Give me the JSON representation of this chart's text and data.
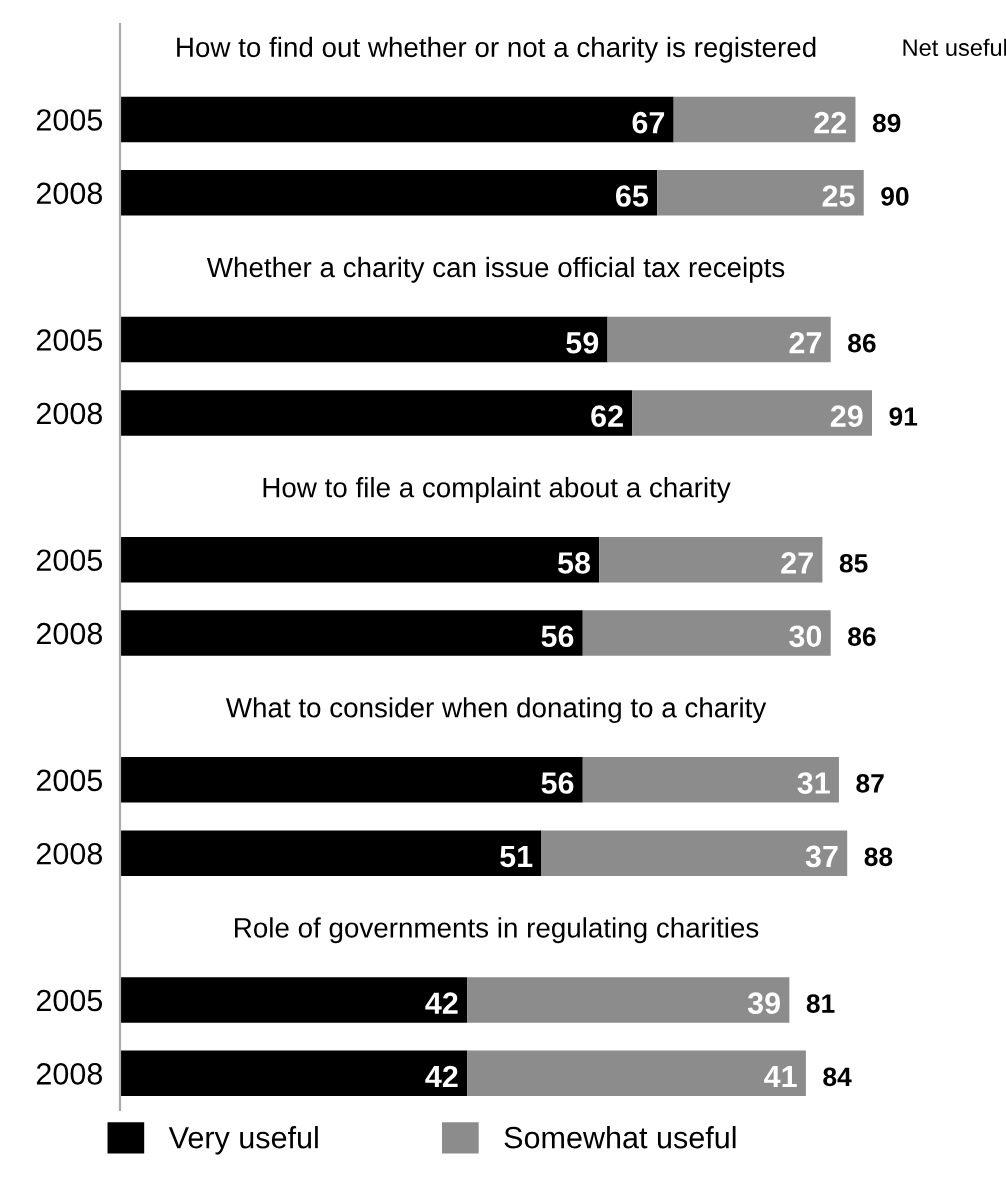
{
  "chart_data": {
    "type": "bar",
    "orientation": "horizontal",
    "stacked": true,
    "data_labels": true,
    "grid": false,
    "legend": "bottom",
    "categories": [
      "2005",
      "2008",
      "2005",
      "2008",
      "2005",
      "2008",
      "2005",
      "2008",
      "2005",
      "2008"
    ],
    "series": [
      {
        "name": "Very useful",
        "color": "#000000",
        "values": [
          67,
          65,
          59,
          62,
          58,
          56,
          56,
          51,
          42,
          42
        ]
      },
      {
        "name": "Somewhat useful",
        "color": "#8c8c8c",
        "values": [
          22,
          25,
          27,
          29,
          27,
          30,
          31,
          37,
          39,
          41
        ]
      }
    ],
    "totals": [
      "89",
      "90",
      "86",
      "91",
      "85",
      "86",
      "87",
      "88",
      "81",
      "84"
    ],
    "annotations": [
      "How to find out whether or not a charity is registered",
      "Whether a charity can issue official tax receipts",
      "How to file a complaint about a charity",
      "What to consider when donating to a charity",
      "Role of governments in regulating charities",
      "Net useful"
    ]
  }
}
